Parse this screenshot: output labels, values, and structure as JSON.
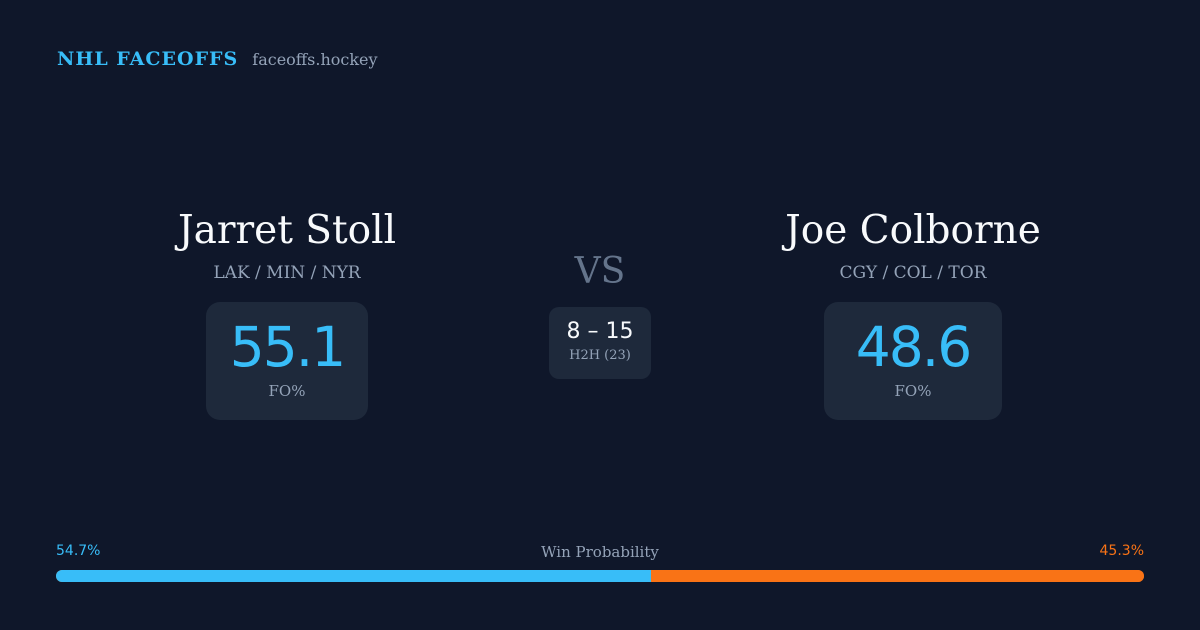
{
  "header": {
    "brand": "NHL FACEOFFS",
    "site": "faceoffs.hockey"
  },
  "player_left": {
    "name": "Jarret Stoll",
    "teams": "LAK / MIN / NYR",
    "stat_value": "55.1",
    "stat_label": "FO%"
  },
  "player_right": {
    "name": "Joe Colborne",
    "teams": "CGY / COL / TOR",
    "stat_value": "48.6",
    "stat_label": "FO%"
  },
  "versus": {
    "label": "VS",
    "h2h_score": "8 – 15",
    "h2h_label": "H2H (23)"
  },
  "win_probability": {
    "label": "Win Probability",
    "left_text": "54.7%",
    "right_text": "45.3%",
    "left_value": 54.7,
    "right_value": 45.3,
    "left_color": "#38bdf8",
    "right_color": "#f97316"
  }
}
